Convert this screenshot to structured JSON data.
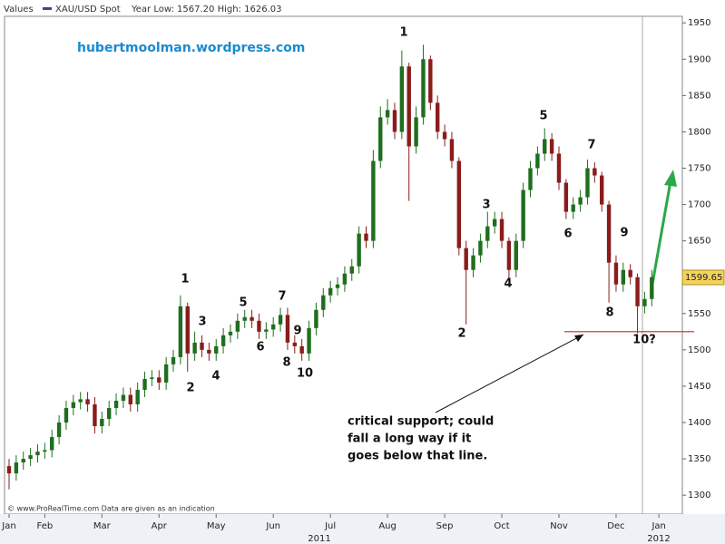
{
  "chart_data": {
    "type": "candlestick",
    "header_label": "Values",
    "instrument": "XAU/USD Spot",
    "year_range": "Year Low: 1567.20 High: 1626.03",
    "watermark": "hubertmoolman.wordpress.com",
    "source": "© www.ProRealTime.com Data are given as an indication",
    "categories": [
      "Jan",
      null,
      null,
      null,
      null,
      "Feb",
      null,
      null,
      null,
      null,
      null,
      null,
      null,
      "Mar",
      null,
      null,
      null,
      null,
      null,
      null,
      null,
      "Apr",
      null,
      null,
      null,
      null,
      null,
      null,
      null,
      "May",
      null,
      null,
      null,
      null,
      null,
      null,
      null,
      "Jun",
      null,
      null,
      null,
      null,
      null,
      null,
      null,
      "Jul",
      null,
      null,
      null,
      null,
      null,
      null,
      null,
      "Aug",
      null,
      null,
      null,
      null,
      null,
      null,
      null,
      "Sep",
      null,
      null,
      null,
      null,
      null,
      null,
      null,
      "Oct",
      null,
      null,
      null,
      null,
      null,
      null,
      null,
      "Nov",
      null,
      null,
      null,
      null,
      null,
      null,
      null,
      "Dec",
      null,
      null,
      null,
      null,
      null,
      "Jan",
      null
    ],
    "years": [
      "2011",
      "2012"
    ],
    "open": [
      1340,
      1330,
      1345,
      1350,
      1355,
      1360,
      1362,
      1380,
      1400,
      1420,
      1428,
      1432,
      1425,
      1395,
      1405,
      1420,
      1430,
      1438,
      1425,
      1445,
      1460,
      1462,
      1455,
      1480,
      1490,
      1560,
      1495,
      1510,
      1500,
      1495,
      1505,
      1520,
      1525,
      1540,
      1545,
      1540,
      1525,
      1528,
      1535,
      1548,
      1510,
      1505,
      1495,
      1530,
      1555,
      1575,
      1585,
      1590,
      1605,
      1615,
      1660,
      1650,
      1760,
      1820,
      1830,
      1800,
      1890,
      1780,
      1820,
      1900,
      1840,
      1800,
      1790,
      1760,
      1640,
      1610,
      1630,
      1650,
      1670,
      1680,
      1650,
      1610,
      1650,
      1720,
      1750,
      1770,
      1790,
      1770,
      1730,
      1690,
      1700,
      1710,
      1750,
      1740,
      1700,
      1620,
      1590,
      1610,
      1600,
      1560,
      1570,
      null,
      null
    ],
    "high": [
      1350,
      1355,
      1360,
      1365,
      1370,
      1372,
      1390,
      1410,
      1430,
      1438,
      1442,
      1442,
      1435,
      1415,
      1430,
      1440,
      1448,
      1448,
      1455,
      1470,
      1472,
      1472,
      1490,
      1500,
      1575,
      1565,
      1525,
      1520,
      1510,
      1515,
      1530,
      1535,
      1550,
      1555,
      1555,
      1550,
      1538,
      1545,
      1558,
      1558,
      1520,
      1515,
      1540,
      1565,
      1585,
      1595,
      1600,
      1615,
      1625,
      1670,
      1670,
      1775,
      1835,
      1845,
      1840,
      1912,
      1895,
      1835,
      1920,
      1905,
      1850,
      1810,
      1800,
      1765,
      1650,
      1640,
      1660,
      1690,
      1690,
      1690,
      1655,
      1660,
      1730,
      1760,
      1780,
      1805,
      1798,
      1780,
      1735,
      1710,
      1720,
      1762,
      1758,
      1745,
      1705,
      1630,
      1620,
      1618,
      1605,
      1580,
      1610,
      null,
      null
    ],
    "low": [
      1308,
      1320,
      1335,
      1340,
      1345,
      1350,
      1352,
      1370,
      1390,
      1410,
      1418,
      1415,
      1385,
      1385,
      1395,
      1410,
      1420,
      1415,
      1415,
      1435,
      1450,
      1445,
      1445,
      1470,
      1480,
      1470,
      1485,
      1490,
      1485,
      1485,
      1495,
      1510,
      1515,
      1530,
      1530,
      1515,
      1515,
      1518,
      1525,
      1500,
      1495,
      1485,
      1485,
      1520,
      1545,
      1565,
      1575,
      1580,
      1595,
      1605,
      1640,
      1640,
      1750,
      1810,
      1790,
      1790,
      1705,
      1770,
      1810,
      1830,
      1790,
      1780,
      1750,
      1630,
      1535,
      1600,
      1620,
      1640,
      1660,
      1640,
      1598,
      1600,
      1640,
      1710,
      1740,
      1760,
      1760,
      1720,
      1680,
      1680,
      1690,
      1700,
      1730,
      1690,
      1565,
      1580,
      1580,
      1590,
      1523,
      1550,
      1560,
      null,
      null
    ],
    "close": [
      1330,
      1345,
      1350,
      1355,
      1360,
      1362,
      1380,
      1400,
      1420,
      1428,
      1432,
      1425,
      1395,
      1405,
      1420,
      1430,
      1438,
      1425,
      1445,
      1460,
      1462,
      1455,
      1480,
      1490,
      1560,
      1495,
      1510,
      1500,
      1495,
      1505,
      1520,
      1525,
      1540,
      1545,
      1540,
      1525,
      1528,
      1535,
      1548,
      1510,
      1505,
      1495,
      1530,
      1555,
      1575,
      1585,
      1590,
      1605,
      1615,
      1660,
      1650,
      1760,
      1820,
      1830,
      1800,
      1890,
      1780,
      1820,
      1900,
      1840,
      1800,
      1790,
      1760,
      1640,
      1610,
      1630,
      1650,
      1670,
      1680,
      1650,
      1610,
      1650,
      1720,
      1750,
      1770,
      1790,
      1770,
      1730,
      1690,
      1700,
      1710,
      1750,
      1740,
      1700,
      1620,
      1590,
      1610,
      1600,
      1560,
      1570,
      1600,
      null,
      null
    ],
    "up_color": "#1f6e1f",
    "down_color": "#8a1c1c",
    "ylim": [
      1274,
      1959
    ],
    "yticks": [
      1300,
      1350,
      1400,
      1450,
      1500,
      1550,
      1600,
      1650,
      1700,
      1750,
      1800,
      1850,
      1900,
      1950
    ],
    "last_price": 1599.65,
    "support_level": 1525,
    "wave_labels": [
      "1",
      "2",
      "3",
      "4",
      "5",
      "6",
      "7",
      "8",
      "9",
      "10",
      "1",
      "2",
      "3",
      "4",
      "5",
      "6",
      "7",
      "8",
      "9",
      "10?"
    ],
    "note": [
      "critical support; could",
      "fall a long way if it",
      "goes below that line."
    ]
  }
}
